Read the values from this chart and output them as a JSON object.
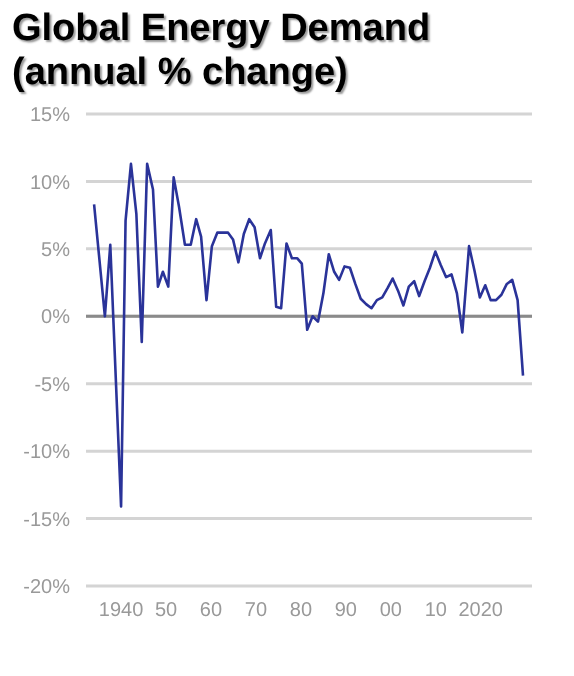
{
  "chart_data": {
    "type": "line",
    "title": "Global Energy Demand\n(annual % change)",
    "x": [
      1934,
      1936.4,
      1937.6,
      1940,
      1941,
      1942.2,
      1943.4,
      1944.6,
      1945.8,
      1947.1,
      1948.2,
      1949.3,
      1950.5,
      1951.7,
      1952.9,
      1954.2,
      1955.5,
      1956.7,
      1957.8,
      1959,
      1960.2,
      1961.4,
      1963.8,
      1964.9,
      1966.1,
      1967.3,
      1968.5,
      1969.7,
      1970.9,
      1972,
      1973.3,
      1974.5,
      1975.6,
      1976.8,
      1978,
      1979.2,
      1980.2,
      1981.4,
      1982.6,
      1983.8,
      1985,
      1986.2,
      1987.4,
      1988.5,
      1989.7,
      1990.9,
      1992.1,
      1993.3,
      1994.5,
      1995.7,
      1996.9,
      1998.1,
      1999.3,
      2000.4,
      2001.6,
      2002.8,
      2004,
      2005.2,
      2006.3,
      2007.5,
      2008.7,
      2009.9,
      2011.1,
      2012.3,
      2013.5,
      2014.7,
      2015.9,
      2017.4,
      2018.6,
      2019.8,
      2021,
      2022.2,
      2023.4,
      2024.6,
      2025.8,
      2027,
      2028.2,
      2029.4
    ],
    "series": [
      {
        "color": "#2a3399",
        "values": [
          8.3,
          0,
          5.3,
          -14.1,
          7.1,
          11.3,
          7.6,
          -1.9,
          11.3,
          9.4,
          2.2,
          3.3,
          2.2,
          10.3,
          8.1,
          5.3,
          5.3,
          7.2,
          5.9,
          1.2,
          5.2,
          6.2,
          6.2,
          5.7,
          4.0,
          6.1,
          7.2,
          6.6,
          4.3,
          5.4,
          6.4,
          0.7,
          0.6,
          5.4,
          4.3,
          4.3,
          3.9,
          -1.0,
          0,
          -0.4,
          1.7,
          4.6,
          3.3,
          2.7,
          3.7,
          3.6,
          2.4,
          1.3,
          0.9,
          0.6,
          1.2,
          1.4,
          2.1,
          2.8,
          1.9,
          0.8,
          2.2,
          2.6,
          1.5,
          2.6,
          3.6,
          4.8,
          3.8,
          2.9,
          3.1,
          1.7,
          -1.2,
          5.2,
          3.4,
          1.4,
          2.3,
          1.2,
          1.2,
          1.6,
          2.4,
          2.7,
          1.2,
          -4.4
        ]
      }
    ],
    "xlim": [
      1932.2,
      2031.4
    ],
    "xticks": [
      {
        "value": 1940,
        "label": "1940"
      },
      {
        "value": 1950,
        "label": "50"
      },
      {
        "value": 1960,
        "label": "60"
      },
      {
        "value": 1970,
        "label": "70"
      },
      {
        "value": 1980,
        "label": "80"
      },
      {
        "value": 1990,
        "label": "90"
      },
      {
        "value": 2000,
        "label": "00"
      },
      {
        "value": 2010,
        "label": "10"
      },
      {
        "value": 2020,
        "label": "2020"
      }
    ],
    "ylim": [
      -20,
      15
    ],
    "yticks": [
      {
        "value": -20,
        "label": "-20%"
      },
      {
        "value": -15,
        "label": "-15%"
      },
      {
        "value": -10,
        "label": "-10%"
      },
      {
        "value": -5,
        "label": "-5%"
      },
      {
        "value": 0,
        "label": "0%"
      },
      {
        "value": 5,
        "label": "5%"
      },
      {
        "value": 10,
        "label": "10%"
      },
      {
        "value": 15,
        "label": "15%"
      }
    ],
    "grid": "y",
    "marker": "none",
    "line_style": "solid",
    "ref_lines": [
      {
        "axis": "y",
        "value": 0,
        "color": "#8a8a8a"
      }
    ]
  }
}
